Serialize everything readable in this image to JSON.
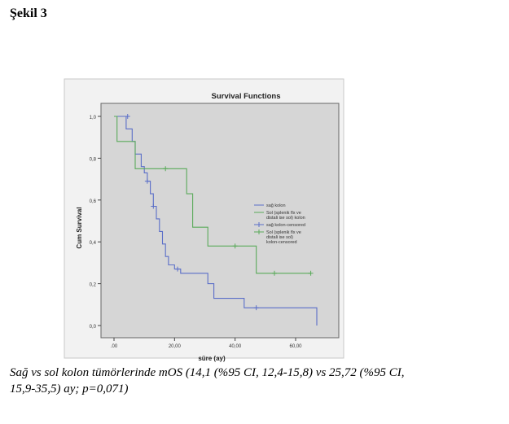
{
  "heading": "Şekil 3",
  "caption_line1": "Sağ vs sol kolon tümörlerinde mOS (14,1 (%95 CI, 12,4-15,8) vs 25,72 (%95 CI,",
  "caption_line2": "15,9-35,5) ay; p=0,071)",
  "chart_data": {
    "type": "line",
    "title": "Survival Functions",
    "ylabel": "Cum Survival",
    "xlabel": "süre (ay)",
    "xlim": [
      0,
      70
    ],
    "ylim": [
      0,
      1.0
    ],
    "x_ticks": [
      ".00",
      "20,00",
      "40,00",
      "60,00"
    ],
    "x_tick_values": [
      0,
      20,
      40,
      60
    ],
    "y_ticks": [
      "0,0",
      "0,2",
      "0,4",
      "0,6",
      "0,8",
      "1,0"
    ],
    "y_tick_values": [
      0,
      0.2,
      0.4,
      0.6,
      0.8,
      1.0
    ],
    "background": "#d6d6d6",
    "legend_position": "right-middle",
    "series": [
      {
        "name": "sağ kolon",
        "color": "#5a6ec8",
        "steps": [
          [
            0,
            1.0
          ],
          [
            4,
            1.0
          ],
          [
            4,
            0.94
          ],
          [
            6,
            0.94
          ],
          [
            6,
            0.88
          ],
          [
            7,
            0.88
          ],
          [
            7,
            0.82
          ],
          [
            9,
            0.82
          ],
          [
            9,
            0.76
          ],
          [
            10,
            0.76
          ],
          [
            10,
            0.73
          ],
          [
            11,
            0.73
          ],
          [
            11,
            0.69
          ],
          [
            12,
            0.69
          ],
          [
            12,
            0.63
          ],
          [
            13,
            0.63
          ],
          [
            13,
            0.57
          ],
          [
            14,
            0.57
          ],
          [
            14,
            0.51
          ],
          [
            15,
            0.51
          ],
          [
            15,
            0.45
          ],
          [
            16,
            0.45
          ],
          [
            16,
            0.39
          ],
          [
            17,
            0.39
          ],
          [
            17,
            0.33
          ],
          [
            18,
            0.33
          ],
          [
            18,
            0.29
          ],
          [
            20,
            0.29
          ],
          [
            20,
            0.27
          ],
          [
            22,
            0.27
          ],
          [
            22,
            0.25
          ],
          [
            31,
            0.25
          ],
          [
            31,
            0.2
          ],
          [
            33,
            0.2
          ],
          [
            33,
            0.13
          ],
          [
            43,
            0.13
          ],
          [
            43,
            0.085
          ],
          [
            67,
            0.085
          ],
          [
            67,
            0.0
          ]
        ]
      },
      {
        "name": "Sol (splenik flx ve distali ise sol) kolon",
        "color": "#5aaa5a",
        "steps": [
          [
            0,
            1.0
          ],
          [
            1,
            1.0
          ],
          [
            1,
            0.88
          ],
          [
            7,
            0.88
          ],
          [
            7,
            0.75
          ],
          [
            24,
            0.75
          ],
          [
            24,
            0.63
          ],
          [
            26,
            0.63
          ],
          [
            26,
            0.47
          ],
          [
            31,
            0.47
          ],
          [
            31,
            0.38
          ],
          [
            47,
            0.38
          ],
          [
            47,
            0.25
          ],
          [
            65,
            0.25
          ]
        ]
      },
      {
        "name": "sağ kolon-censored",
        "color": "#5a6ec8",
        "censored": [
          [
            4.5,
            1.0
          ],
          [
            11,
            0.69
          ],
          [
            13,
            0.57
          ],
          [
            21,
            0.27
          ],
          [
            47,
            0.085
          ]
        ]
      },
      {
        "name": "Sol (splenik flx ve distali ise sol) kolon-censored",
        "color": "#5aaa5a",
        "censored": [
          [
            17,
            0.75
          ],
          [
            40,
            0.38
          ],
          [
            53,
            0.25
          ],
          [
            65,
            0.25
          ]
        ]
      }
    ]
  }
}
